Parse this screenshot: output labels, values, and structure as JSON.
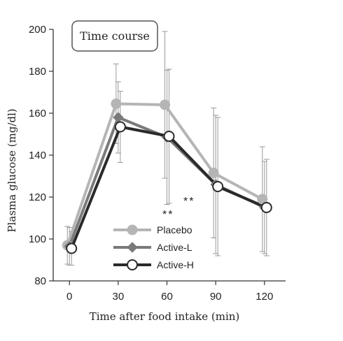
{
  "chart_data": {
    "type": "line",
    "title_box": "Time course",
    "xlabel": "Time after food intake (min)",
    "ylabel": "Plasma glucose (mg/dl)",
    "x": [
      0,
      30,
      60,
      90,
      120
    ],
    "xlim": [
      0,
      120
    ],
    "ylim": [
      80,
      200
    ],
    "xticks": [
      "0",
      "30",
      "60",
      "90",
      "120"
    ],
    "yticks": [
      "80",
      "100",
      "120",
      "140",
      "160",
      "180",
      "200"
    ],
    "grid": false,
    "legend_position": "lower-middle",
    "series": [
      {
        "name": "Placebo",
        "values": [
          97,
          164.5,
          164,
          131.5,
          119
        ],
        "error": [
          9,
          19,
          35,
          31,
          25
        ],
        "color": "#b5b5b5",
        "marker": "circle-filled"
      },
      {
        "name": "Active-L",
        "values": [
          96.5,
          158,
          148.5,
          126,
          115
        ],
        "error": [
          9,
          17,
          32,
          33,
          22
        ],
        "color": "#7a7a7a",
        "marker": "diamond"
      },
      {
        "name": "Active-H",
        "values": [
          95.5,
          153.5,
          149,
          125,
          115
        ],
        "error": [
          8,
          17,
          32,
          33,
          23
        ],
        "color": "#2a2a2a",
        "marker": "circle-open"
      }
    ],
    "annotations": [
      "**",
      "**"
    ]
  }
}
